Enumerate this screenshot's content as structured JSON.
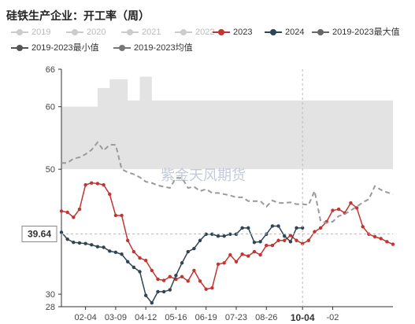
{
  "page_title": "硅铁生产企业：开工率（周）",
  "watermark": "紫金天风期货",
  "colors": {
    "band": "#e3e3e3",
    "series_2023": "#c23531",
    "series_2024": "#2f4554",
    "average": "#9a9a9a",
    "legend_inactive": "#cccccc",
    "legend_active_text": "#333333",
    "legend_inactive_text": "#bbbbbb",
    "legend_max": "#666666",
    "legend_min": "#555555",
    "legend_avg": "#777777"
  },
  "legend": [
    {
      "label": "2019",
      "active": false,
      "color_key": "legend_inactive"
    },
    {
      "label": "2020",
      "active": false,
      "color_key": "legend_inactive"
    },
    {
      "label": "2021",
      "active": false,
      "color_key": "legend_inactive"
    },
    {
      "label": "2022",
      "active": false,
      "color_key": "legend_inactive"
    },
    {
      "label": "2023",
      "active": true,
      "color_key": "series_2023"
    },
    {
      "label": "2024",
      "active": true,
      "color_key": "series_2024"
    },
    {
      "label": "2019-2023最大值",
      "active": true,
      "color_key": "legend_max"
    },
    {
      "label": "2019-2023最小值",
      "active": true,
      "color_key": "legend_min"
    },
    {
      "label": "2019-2023均值",
      "active": true,
      "color_key": "legend_avg"
    }
  ],
  "chart_data": {
    "type": "line",
    "title": "硅铁生产企业：开工率（周）",
    "ylim": [
      28,
      66
    ],
    "y_ticks": [
      28,
      30,
      50,
      60,
      66
    ],
    "x_tick_labels": [
      "02-04",
      "03-09",
      "04-12",
      "05-16",
      "06-19",
      "07-23",
      "08-26",
      "10-04",
      "-02"
    ],
    "axis_pointer": {
      "y_value": "39.64",
      "x_label": "10-04"
    },
    "grid": false,
    "legend_position": "top",
    "week_count": 56,
    "band_max": [
      60,
      60,
      60,
      60,
      60,
      60,
      63,
      63,
      64.4,
      64.4,
      64.4,
      61,
      61,
      64.8,
      64.8,
      61,
      61,
      61,
      61,
      61,
      61,
      61,
      61,
      61,
      61,
      61,
      61,
      61,
      61,
      61,
      61,
      61,
      61,
      61,
      61,
      61,
      61,
      61,
      61,
      61,
      61,
      61,
      61,
      61,
      61,
      61,
      61,
      61,
      61,
      61,
      61,
      61,
      61,
      61,
      61,
      61
    ],
    "band_min": [
      50,
      50,
      50,
      50,
      50,
      50,
      50,
      50,
      50,
      50,
      50,
      50,
      50,
      50,
      50,
      50,
      50,
      50,
      50,
      50,
      50,
      50,
      50,
      50,
      50,
      50,
      50,
      50,
      50,
      50,
      50,
      50,
      50,
      50,
      50,
      50,
      50,
      50,
      50,
      50,
      50,
      50,
      50,
      50,
      50,
      50,
      50,
      50,
      50,
      50,
      50,
      50,
      50,
      50,
      50,
      50
    ],
    "series": [
      {
        "name": "2023",
        "values": [
          43.3,
          43.1,
          42.3,
          43.6,
          47.5,
          47.8,
          47.7,
          47.5,
          46.0,
          42.6,
          42.6,
          38.6,
          36.8,
          35.8,
          35.4,
          33.8,
          32.4,
          32.2,
          32.8,
          32.4,
          32.8,
          32.1,
          33.8,
          32.1,
          30.8,
          31.0,
          34.8,
          35.0,
          36.3,
          35.2,
          36.4,
          36.1,
          36.8,
          36.3,
          37.8,
          37.8,
          38.6,
          38.6,
          39.4,
          38.6,
          38.1,
          38.6,
          40.0,
          40.6,
          41.6,
          43.4,
          43.6,
          43.0,
          44.6,
          43.8,
          40.8,
          39.6,
          39.2,
          38.9,
          38.4,
          38.0
        ]
      },
      {
        "name": "2024",
        "values": [
          39.9,
          38.8,
          38.3,
          38.2,
          38.1,
          37.9,
          37.6,
          37.5,
          36.9,
          36.7,
          36.4,
          35.2,
          34.3,
          33.6,
          29.8,
          28.6,
          30.4,
          30.4,
          30.7,
          33.0,
          35.0,
          36.8,
          37.3,
          38.6,
          39.6,
          39.6,
          39.3,
          39.3,
          39.6,
          39.6,
          40.6,
          40.6,
          38.3,
          38.4,
          39.6,
          40.9,
          40.9,
          39.3,
          38.4,
          40.6,
          40.6
        ]
      },
      {
        "name": "2019-2023均值",
        "values": [
          51.0,
          51.0,
          51.7,
          51.9,
          52.4,
          53.1,
          54.3,
          53.0,
          53.9,
          53.9,
          50.0,
          49.5,
          49.2,
          48.7,
          48.0,
          47.8,
          47.4,
          47.2,
          47.0,
          48.6,
          48.6,
          47.0,
          47.2,
          46.5,
          46.8,
          46.2,
          46.2,
          46.0,
          45.8,
          45.5,
          45.5,
          44.9,
          44.9,
          44.9,
          44.0,
          45.0,
          44.6,
          44.6,
          44.7,
          44.4,
          44.4,
          44.3,
          46.5,
          41.7,
          41.4,
          41.6,
          42.5,
          42.8,
          43.4,
          44.0,
          44.7,
          45.2,
          47.3,
          46.7,
          46.3,
          46.0
        ]
      }
    ]
  }
}
